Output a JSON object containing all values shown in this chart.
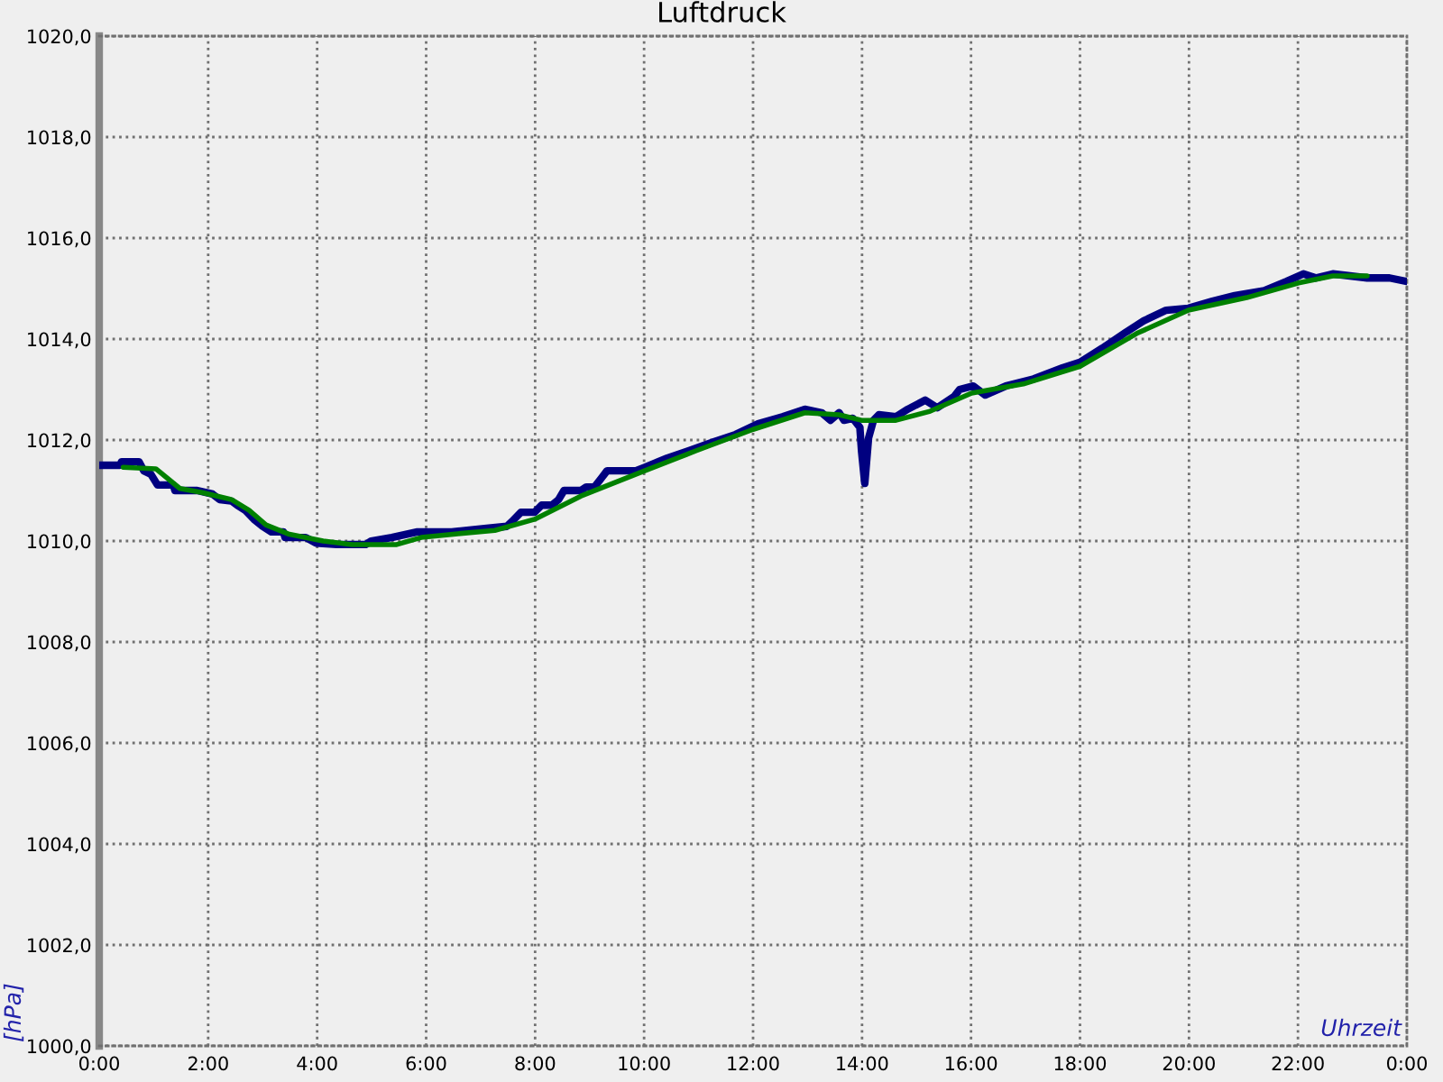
{
  "chart_data": {
    "type": "line",
    "title": "Luftdruck",
    "xlabel": "Uhrzeit",
    "ylabel": "[hPa]",
    "xlim": [
      0,
      24
    ],
    "xticks": [
      {
        "value": 0,
        "label": "0:00"
      },
      {
        "value": 2,
        "label": "2:00"
      },
      {
        "value": 4,
        "label": "4:00"
      },
      {
        "value": 6,
        "label": "6:00"
      },
      {
        "value": 8,
        "label": "8:00"
      },
      {
        "value": 10,
        "label": "10:00"
      },
      {
        "value": 12,
        "label": "12:00"
      },
      {
        "value": 14,
        "label": "14:00"
      },
      {
        "value": 16,
        "label": "16:00"
      },
      {
        "value": 18,
        "label": "18:00"
      },
      {
        "value": 20,
        "label": "20:00"
      },
      {
        "value": 22,
        "label": "22:00"
      },
      {
        "value": 24,
        "label": "0:00"
      }
    ],
    "ylim": [
      1000,
      1020
    ],
    "yticks": [
      {
        "value": 1000,
        "label": "1000,0"
      },
      {
        "value": 1002,
        "label": "1002,0"
      },
      {
        "value": 1004,
        "label": "1004,0"
      },
      {
        "value": 1006,
        "label": "1006,0"
      },
      {
        "value": 1008,
        "label": "1008,0"
      },
      {
        "value": 1010,
        "label": "1010,0"
      },
      {
        "value": 1012,
        "label": "1012,0"
      },
      {
        "value": 1014,
        "label": "1014,0"
      },
      {
        "value": 1016,
        "label": "1016,0"
      },
      {
        "value": 1018,
        "label": "1018,0"
      },
      {
        "value": 1020,
        "label": "1020,0"
      }
    ],
    "grid": true,
    "series": [
      {
        "color": "#000080",
        "x": [
          0.0,
          0.38,
          0.41,
          0.73,
          0.82,
          0.95,
          1.07,
          1.36,
          1.39,
          1.8,
          2.08,
          2.21,
          2.43,
          2.53,
          2.68,
          2.84,
          3.0,
          3.16,
          3.38,
          3.41,
          3.79,
          3.98,
          4.36,
          4.89,
          4.99,
          5.37,
          5.84,
          6.47,
          7.11,
          7.48,
          7.58,
          7.74,
          7.99,
          8.12,
          8.31,
          8.43,
          8.53,
          8.84,
          8.94,
          9.09,
          9.22,
          9.32,
          9.85,
          10.01,
          10.42,
          10.83,
          11.27,
          11.68,
          12.09,
          12.54,
          12.95,
          13.26,
          13.42,
          13.58,
          13.67,
          13.83,
          13.96,
          13.99,
          14.05,
          14.12,
          14.21,
          14.31,
          14.62,
          14.84,
          15.16,
          15.38,
          15.69,
          15.79,
          16.04,
          16.26,
          16.64,
          17.15,
          17.68,
          18.0,
          18.41,
          18.85,
          19.17,
          19.58,
          19.99,
          20.43,
          20.84,
          21.38,
          21.79,
          22.1,
          22.33,
          22.64,
          23.27,
          23.68,
          24.0
        ],
        "values": [
          1011.5,
          1011.5,
          1011.57,
          1011.57,
          1011.39,
          1011.32,
          1011.11,
          1011.11,
          1011.0,
          1011.0,
          1010.93,
          1010.82,
          1010.79,
          1010.71,
          1010.61,
          1010.43,
          1010.29,
          1010.18,
          1010.18,
          1010.07,
          1010.07,
          1009.96,
          1009.93,
          1009.93,
          1010.0,
          1010.07,
          1010.18,
          1010.18,
          1010.25,
          1010.29,
          1010.39,
          1010.57,
          1010.57,
          1010.71,
          1010.71,
          1010.82,
          1011.0,
          1011.0,
          1011.07,
          1011.07,
          1011.25,
          1011.39,
          1011.39,
          1011.46,
          1011.64,
          1011.79,
          1011.96,
          1012.11,
          1012.32,
          1012.46,
          1012.61,
          1012.54,
          1012.39,
          1012.54,
          1012.39,
          1012.43,
          1012.25,
          1011.79,
          1011.14,
          1012.04,
          1012.39,
          1012.5,
          1012.46,
          1012.61,
          1012.79,
          1012.64,
          1012.86,
          1013.0,
          1013.07,
          1012.89,
          1013.07,
          1013.21,
          1013.43,
          1013.54,
          1013.82,
          1014.14,
          1014.36,
          1014.57,
          1014.61,
          1014.75,
          1014.86,
          1014.96,
          1015.14,
          1015.29,
          1015.21,
          1015.29,
          1015.21,
          1015.21,
          1015.14
        ]
      },
      {
        "color": "#008000",
        "x": [
          0.44,
          1.04,
          1.48,
          1.89,
          2.43,
          2.75,
          3.06,
          3.47,
          4.11,
          4.64,
          5.46,
          5.91,
          6.54,
          7.26,
          7.99,
          8.84,
          10.01,
          10.96,
          12.0,
          12.95,
          13.58,
          13.99,
          14.62,
          15.25,
          16.01,
          16.96,
          18.0,
          19.04,
          19.99,
          21.06,
          22.01,
          22.64,
          23.27
        ],
        "values": [
          1011.46,
          1011.43,
          1011.04,
          1010.96,
          1010.82,
          1010.61,
          1010.32,
          1010.14,
          1010.0,
          1009.93,
          1009.93,
          1010.07,
          1010.14,
          1010.21,
          1010.43,
          1010.89,
          1011.39,
          1011.79,
          1012.21,
          1012.54,
          1012.5,
          1012.39,
          1012.39,
          1012.57,
          1012.93,
          1013.11,
          1013.46,
          1014.11,
          1014.57,
          1014.82,
          1015.11,
          1015.25,
          1015.25
        ]
      }
    ]
  }
}
